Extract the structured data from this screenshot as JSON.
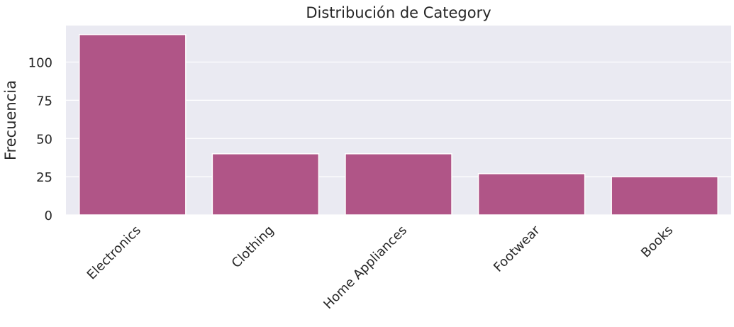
{
  "chart_data": {
    "type": "bar",
    "title": "Distribución de Category",
    "xlabel": "",
    "ylabel": "Frecuencia",
    "categories": [
      "Electronics",
      "Clothing",
      "Home Appliances",
      "Footwear",
      "Books"
    ],
    "values": [
      118,
      40,
      40,
      27,
      25
    ],
    "ylim": [
      0,
      123.9
    ],
    "yticks": [
      0,
      25,
      50,
      75,
      100
    ],
    "ytick_labels": [
      "0",
      "25",
      "50",
      "75",
      "100"
    ],
    "grid": true,
    "legend": "none",
    "x_tick_rotation": 45,
    "colors": {
      "bar": "#b05587",
      "plot_background": "#eaeaf2",
      "gridline": "#ffffff",
      "text": "#262626"
    }
  }
}
